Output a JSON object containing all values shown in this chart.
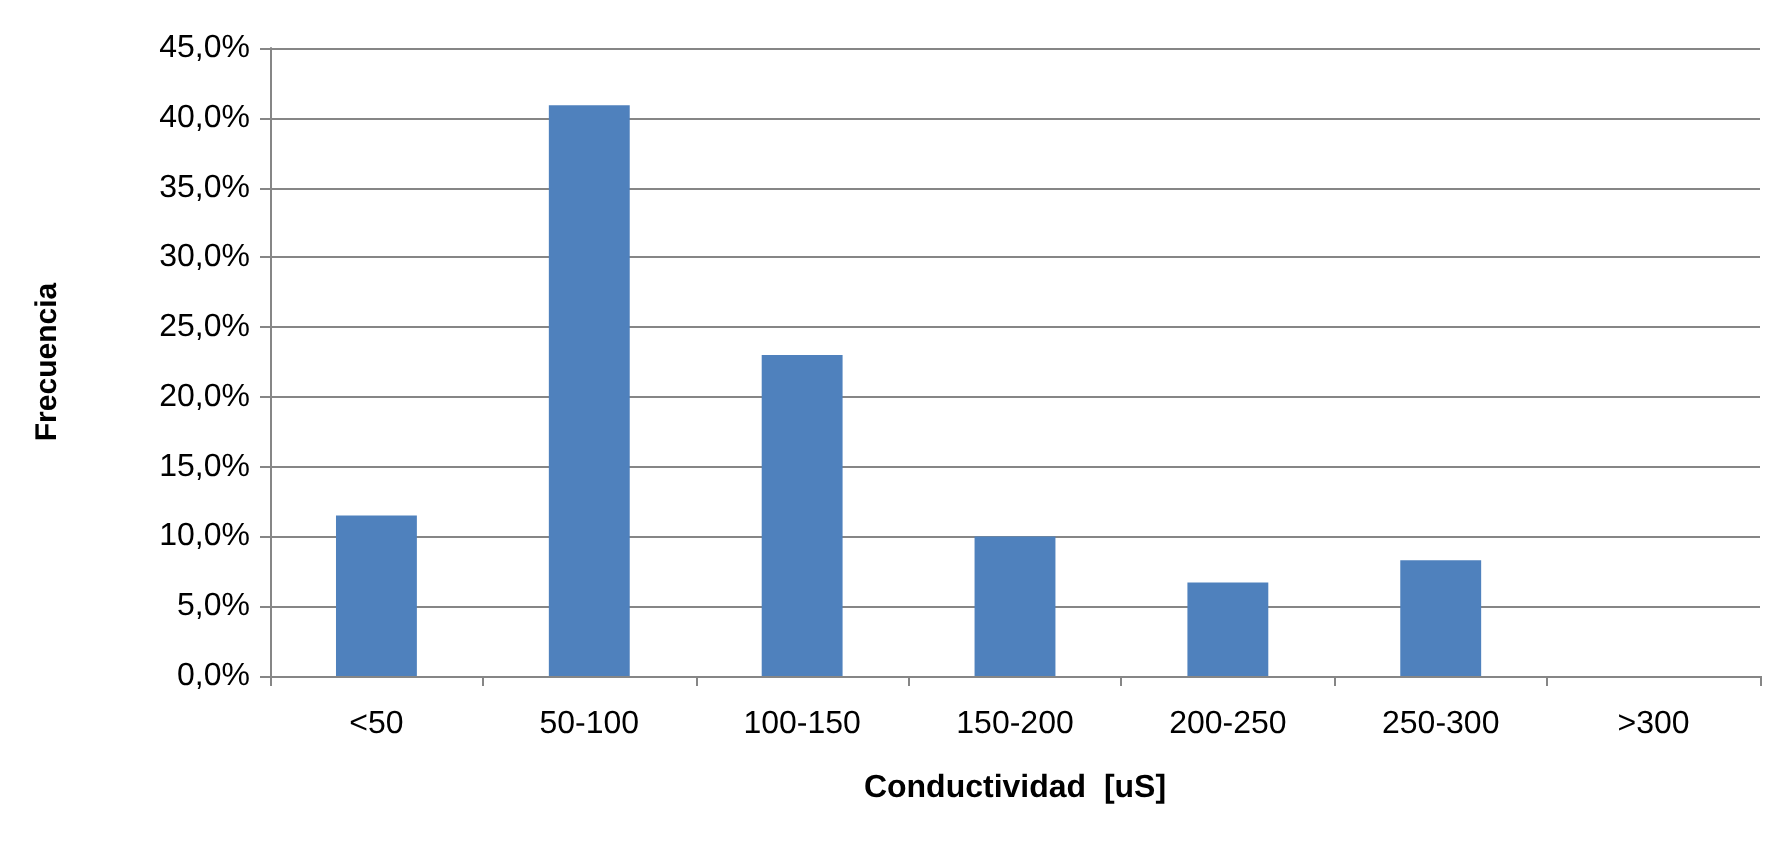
{
  "chart_data": {
    "type": "bar",
    "xlabel": "Conductividad  [uS]",
    "ylabel": "Frecuencia",
    "categories": [
      "<50",
      "50-100",
      "100-150",
      "150-200",
      "200-250",
      "250-300",
      ">300"
    ],
    "values": [
      11.5,
      40.9,
      23.0,
      10.0,
      6.7,
      8.3,
      0
    ],
    "color": "#4f81bd",
    "ylim": [
      0,
      45
    ],
    "yticks": [
      {
        "value": 0,
        "label": "0,0%"
      },
      {
        "value": 5,
        "label": "5,0%"
      },
      {
        "value": 10,
        "label": "10,0%"
      },
      {
        "value": 15,
        "label": "15,0%"
      },
      {
        "value": 20,
        "label": "20,0%"
      },
      {
        "value": 25,
        "label": "25,0%"
      },
      {
        "value": 30,
        "label": "30,0%"
      },
      {
        "value": 35,
        "label": "35,0%"
      },
      {
        "value": 40,
        "label": "40,0%"
      },
      {
        "value": 45,
        "label": "45,0%"
      }
    ],
    "grid": "y"
  }
}
